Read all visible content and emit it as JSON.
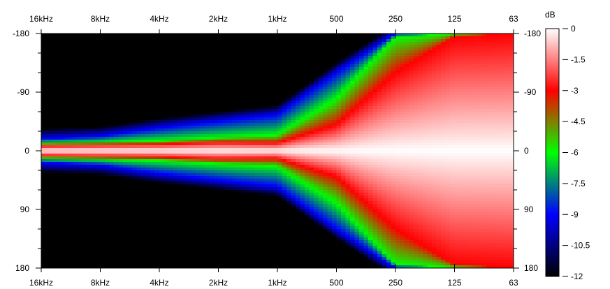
{
  "chart_data": {
    "type": "heatmap",
    "title": "",
    "xlabel": "",
    "ylabel": "",
    "x_ticks": [
      "16kHz",
      "8kHz",
      "4kHz",
      "2kHz",
      "1kHz",
      "500",
      "250",
      "125",
      "63"
    ],
    "y_ticks_left": [
      "-180",
      "-90",
      "0",
      "90",
      "180"
    ],
    "y_ticks_right": [
      "-180",
      "-90",
      "0",
      "90",
      "180"
    ],
    "y_range": [
      -180,
      180
    ],
    "x_axis": "frequency (log scale, descending left to right)",
    "colorbar": {
      "unit": "dB",
      "range": [
        -12,
        0
      ],
      "labels": [
        "0",
        "-1.5",
        "-3",
        "-4.5",
        "-6",
        "-7.5",
        "-9",
        "-10.5",
        "-12"
      ],
      "colors": [
        {
          "value": 0,
          "color": "#ffffff"
        },
        {
          "value": -1.5,
          "color": "#ff8080"
        },
        {
          "value": -3,
          "color": "#ff0000"
        },
        {
          "value": -4.5,
          "color": "#808000"
        },
        {
          "value": -6,
          "color": "#00ff00"
        },
        {
          "value": -7.5,
          "color": "#008080"
        },
        {
          "value": -9,
          "color": "#0000ff"
        },
        {
          "value": -10.5,
          "color": "#000080"
        },
        {
          "value": -12,
          "color": "#000000"
        }
      ]
    },
    "contours": {
      "frequencies_hz": [
        16000,
        8000,
        4000,
        2000,
        1000,
        500,
        250,
        125,
        63
      ],
      "minus_3dB_angle_deg": [
        8,
        9,
        10,
        13,
        12,
        40,
        120,
        175,
        180
      ],
      "minus_6dB_angle_deg": [
        12,
        13,
        15,
        20,
        24,
        80,
        175,
        180,
        180
      ],
      "minus_9dB_angle_deg": [
        18,
        22,
        35,
        45,
        55,
        120,
        180,
        180,
        180
      ]
    }
  }
}
